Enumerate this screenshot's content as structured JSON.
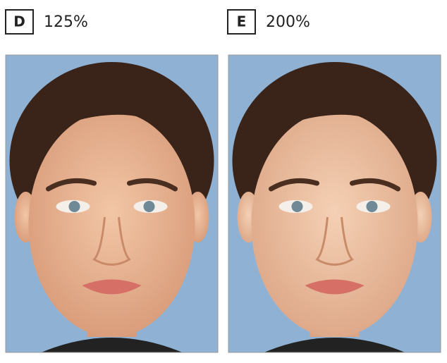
{
  "panels": [
    {
      "letter": "D",
      "label": "125%"
    },
    {
      "letter": "E",
      "label": "200%"
    }
  ]
}
